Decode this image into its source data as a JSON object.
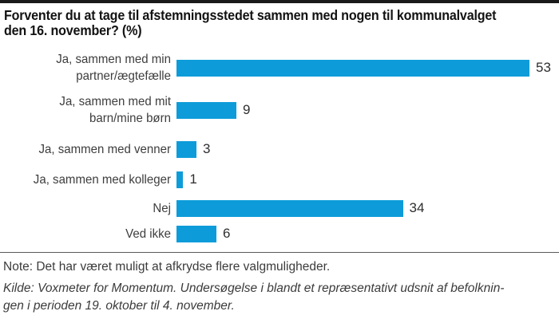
{
  "header": {
    "title_line1": "Forventer du at tage til afstemningsstedet sammen med nogen til kommunalvalget",
    "title_line2": "den 16. november? (%)"
  },
  "chart_data": {
    "type": "bar",
    "orientation": "horizontal",
    "title": "Forventer du at tage til afstemningsstedet sammen med nogen til kommunalvalget den 16. november? (%)",
    "categories": [
      "Ja, sammen med min partner/ægtefælle",
      "Ja, sammen med mit barn/mine børn",
      "Ja, sammen med venner",
      "Ja, sammen med kolleger",
      "Nej",
      "Ved ikke"
    ],
    "label_lines": [
      [
        "Ja, sammen med min",
        "partner/ægtefælle"
      ],
      [
        "Ja, sammen med mit",
        "barn/mine børn"
      ],
      [
        "Ja, sammen med venner"
      ],
      [
        "Ja, sammen med kolleger"
      ],
      [
        "Nej"
      ],
      [
        "Ved ikke"
      ]
    ],
    "values": [
      53,
      9,
      3,
      1,
      34,
      6
    ],
    "xlim": [
      0,
      57
    ],
    "value_labels_shown": true,
    "grid": "off",
    "legend": "none",
    "bar_color": "#0d9cd9"
  },
  "footer": {
    "note": "Note: Det har været muligt at afkrydse flere valgmuligheder.",
    "kilde_line1": "Kilde: Voxmeter for Momentum. Undersøgelse i blandt et repræsentativt udsnit af befolknin-",
    "kilde_line2": "gen i perioden 19. oktober til 4. november."
  }
}
